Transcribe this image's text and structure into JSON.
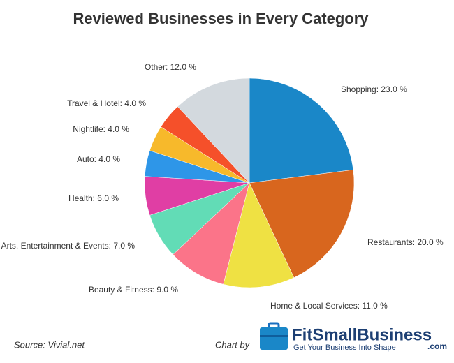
{
  "chart_data": {
    "type": "pie",
    "title": "Reviewed Businesses in Every Category",
    "values": [
      23,
      20,
      11,
      9,
      7,
      6,
      4,
      4,
      4,
      12
    ],
    "value_labels": [
      "Shopping: 23.0 %",
      "Restaurants: 20.0 %",
      "Home & Local Services: 11.0 %",
      "Beauty & Fitness: 9.0 %",
      "Arts, Entertainment & Events: 7.0 %",
      "Health: 6.0 %",
      "Auto: 4.0 %",
      "Nightlife: 4.0 %",
      "Travel & Hotel: 4.0 %",
      "Other: 12.0 %"
    ],
    "colors": [
      "#1a87c8",
      "#d8661e",
      "#efe143",
      "#fb7489",
      "#62dcb6",
      "#e03ea4",
      "#2e96e8",
      "#f7b92b",
      "#f5502a",
      "#d3d9de"
    ]
  },
  "footer": {
    "source": "Source: Vivial.net",
    "credit": "Chart by",
    "brand": "FitSmallBusiness",
    "brand_suffix": ".com",
    "tagline": "Get Your Business Into Shape"
  }
}
